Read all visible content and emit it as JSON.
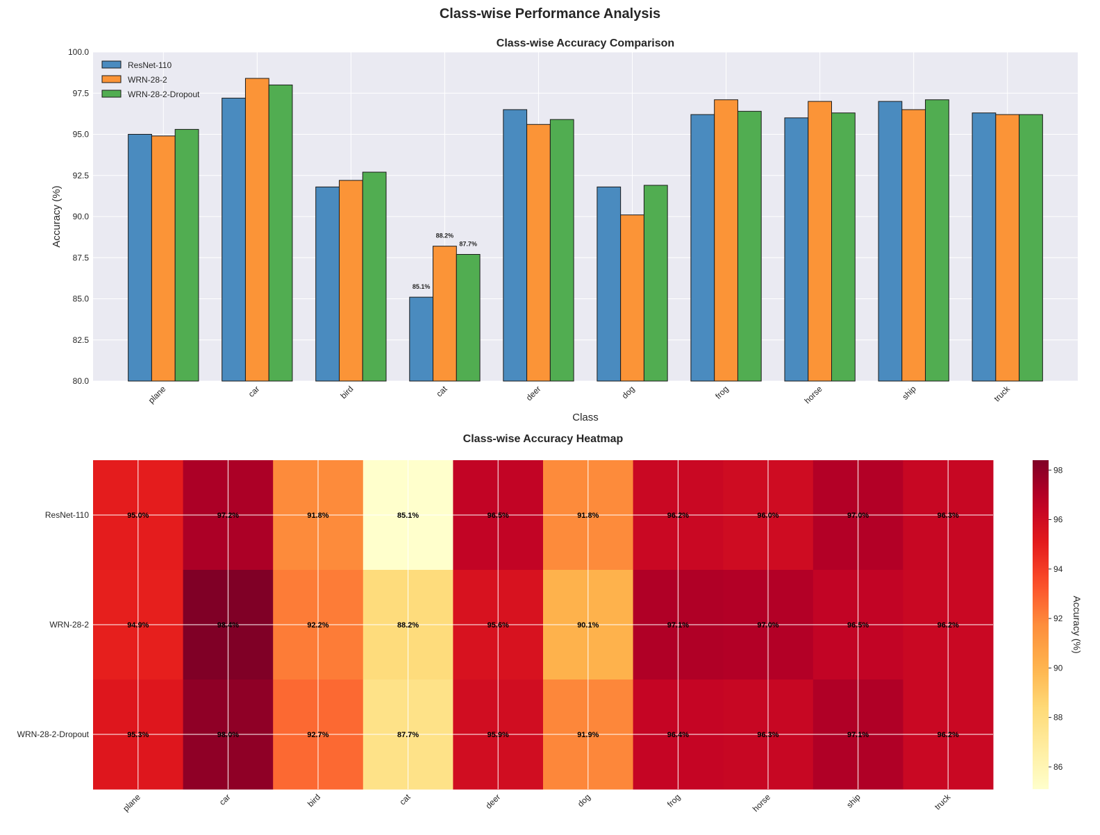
{
  "figure": {
    "suptitle": "Class-wise Performance Analysis"
  },
  "colors": {
    "resnet": "#4a8bbf",
    "wrn": "#fb9437",
    "wrn_dropout": "#51ad51",
    "panel_bg": "#eaeaf2"
  },
  "chart_data": [
    {
      "type": "bar",
      "title": "Class-wise Accuracy Comparison",
      "xlabel": "Class",
      "ylabel": "Accuracy (%)",
      "ylim": [
        80,
        100
      ],
      "yticks": [
        "80.0",
        "82.5",
        "85.0",
        "87.5",
        "90.0",
        "92.5",
        "95.0",
        "97.5",
        "100.0"
      ],
      "grid": true,
      "legend_position": "top-left",
      "categories": [
        "plane",
        "car",
        "bird",
        "cat",
        "deer",
        "dog",
        "frog",
        "horse",
        "ship",
        "truck"
      ],
      "series": [
        {
          "name": "ResNet-110",
          "values": [
            95.0,
            97.2,
            91.8,
            85.1,
            96.5,
            91.8,
            96.2,
            96.0,
            97.0,
            96.3
          ]
        },
        {
          "name": "WRN-28-2",
          "values": [
            94.9,
            98.4,
            92.2,
            88.2,
            95.6,
            90.1,
            97.1,
            97.0,
            96.5,
            96.2
          ]
        },
        {
          "name": "WRN-28-2-Dropout",
          "values": [
            95.3,
            98.0,
            92.7,
            87.7,
            95.9,
            91.9,
            96.4,
            96.3,
            97.1,
            96.2
          ]
        }
      ],
      "annotations": [
        {
          "category": "cat",
          "series": "ResNet-110",
          "text": "85.1%"
        },
        {
          "category": "cat",
          "series": "WRN-28-2",
          "text": "88.2%"
        },
        {
          "category": "cat",
          "series": "WRN-28-2-Dropout",
          "text": "87.7%"
        }
      ]
    },
    {
      "type": "heatmap",
      "title": "Class-wise Accuracy Heatmap",
      "columns": [
        "plane",
        "car",
        "bird",
        "cat",
        "deer",
        "dog",
        "frog",
        "horse",
        "ship",
        "truck"
      ],
      "rows": [
        "ResNet-110",
        "WRN-28-2",
        "WRN-28-2-Dropout"
      ],
      "values": [
        [
          95.0,
          97.2,
          91.8,
          85.1,
          96.5,
          91.8,
          96.2,
          96.0,
          97.0,
          96.3
        ],
        [
          94.9,
          98.4,
          92.2,
          88.2,
          95.6,
          90.1,
          97.1,
          97.0,
          96.5,
          96.2
        ],
        [
          95.3,
          98.0,
          92.7,
          87.7,
          95.9,
          91.9,
          96.4,
          96.3,
          97.1,
          96.2
        ]
      ],
      "cell_labels": [
        [
          "95.0%",
          "97.2%",
          "91.8%",
          "85.1%",
          "96.5%",
          "91.8%",
          "96.2%",
          "96.0%",
          "97.0%",
          "96.3%"
        ],
        [
          "94.9%",
          "98.4%",
          "92.2%",
          "88.2%",
          "95.6%",
          "90.1%",
          "97.1%",
          "97.0%",
          "96.5%",
          "96.2%"
        ],
        [
          "95.3%",
          "98.0%",
          "92.7%",
          "87.7%",
          "95.9%",
          "91.9%",
          "96.4%",
          "96.3%",
          "97.1%",
          "96.2%"
        ]
      ],
      "colormap": "YlOrRd",
      "color_range": [
        85.1,
        98.4
      ],
      "colorbar_label": "Accuracy (%)",
      "colorbar_ticks": [
        "86",
        "88",
        "90",
        "92",
        "94",
        "96",
        "98"
      ]
    }
  ]
}
